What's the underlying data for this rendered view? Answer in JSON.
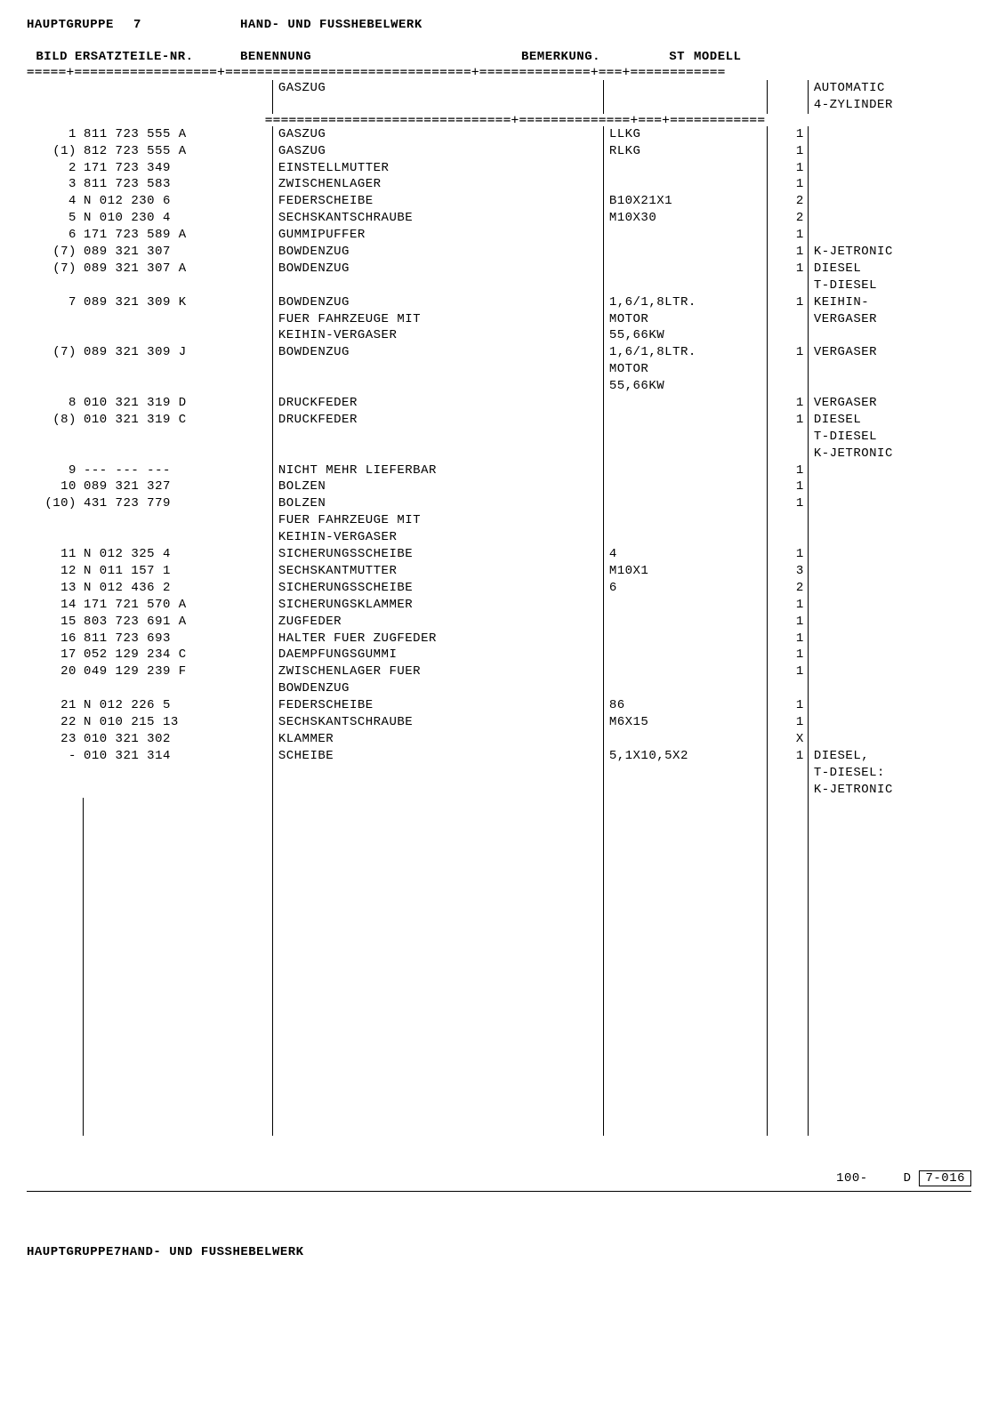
{
  "header": {
    "group_label": "HAUPTGRUPPE",
    "group_number": "7",
    "title": "HAND- UND FUSSHEBELWERK"
  },
  "columns": {
    "bild": "BILD",
    "part": "ERSATZTEILE-NR.",
    "name": "BENENNUNG",
    "remark": "BEMERKUNG.",
    "st": "ST",
    "model": "MODELL"
  },
  "section": {
    "title": "GASZUG",
    "model": "AUTOMATIC\n4-ZYLINDER"
  },
  "rows": [
    {
      "bild": "1",
      "part": "811 723 555 A",
      "name": "GASZUG",
      "remark": "LLKG",
      "st": "1",
      "model": ""
    },
    {
      "bild": "(1)",
      "part": "812 723 555 A",
      "name": "GASZUG",
      "remark": "RLKG",
      "st": "1",
      "model": ""
    },
    {
      "bild": "2",
      "part": "171 723 349",
      "name": "EINSTELLMUTTER",
      "remark": "",
      "st": "1",
      "model": ""
    },
    {
      "bild": "3",
      "part": "811 723 583",
      "name": "ZWISCHENLAGER",
      "remark": "",
      "st": "1",
      "model": ""
    },
    {
      "bild": "4",
      "part": "N   012 230 6",
      "name": "FEDERSCHEIBE",
      "remark": "B10X21X1",
      "st": "2",
      "model": ""
    },
    {
      "bild": "5",
      "part": "N   010 230 4",
      "name": "SECHSKANTSCHRAUBE",
      "remark": "M10X30",
      "st": "2",
      "model": ""
    },
    {
      "bild": "6",
      "part": "171 723 589 A",
      "name": "GUMMIPUFFER",
      "remark": "",
      "st": "1",
      "model": ""
    },
    {
      "bild": "(7)",
      "part": "089 321 307",
      "name": "BOWDENZUG",
      "remark": "",
      "st": "1",
      "model": "K-JETRONIC"
    },
    {
      "bild": "(7)",
      "part": "089 321 307 A",
      "name": "BOWDENZUG",
      "remark": "",
      "st": "1",
      "model": "DIESEL\nT-DIESEL"
    },
    {
      "bild": "7",
      "part": "089 321 309 K",
      "name": "BOWDENZUG\nFUER FAHRZEUGE MIT\nKEIHIN-VERGASER",
      "remark": "1,6/1,8LTR.\nMOTOR\n55,66KW",
      "st": "1",
      "model": "KEIHIN-\nVERGASER"
    },
    {
      "bild": "(7)",
      "part": "089 321 309 J",
      "name": "BOWDENZUG",
      "remark": "1,6/1,8LTR.\nMOTOR\n55,66KW",
      "st": "1",
      "model": "VERGASER"
    },
    {
      "bild": "8",
      "part": "010 321 319 D",
      "name": "DRUCKFEDER",
      "remark": "",
      "st": "1",
      "model": "VERGASER"
    },
    {
      "bild": "(8)",
      "part": "010 321 319 C",
      "name": "DRUCKFEDER",
      "remark": "",
      "st": "1",
      "model": "DIESEL\nT-DIESEL\nK-JETRONIC"
    },
    {
      "bild": "9",
      "part": "--- --- ---",
      "name": "NICHT MEHR LIEFERBAR",
      "remark": "",
      "st": "1",
      "model": ""
    },
    {
      "bild": "10",
      "part": "089 321 327",
      "name": "BOLZEN",
      "remark": "",
      "st": "1",
      "model": ""
    },
    {
      "bild": "(10)",
      "part": "431 723 779",
      "name": "BOLZEN\nFUER FAHRZEUGE MIT\nKEIHIN-VERGASER",
      "remark": "",
      "st": "1",
      "model": ""
    },
    {
      "bild": "11",
      "part": "N   012 325 4",
      "name": "SICHERUNGSSCHEIBE",
      "remark": "4",
      "st": "1",
      "model": ""
    },
    {
      "bild": "12",
      "part": "N   011 157 1",
      "name": "SECHSKANTMUTTER",
      "remark": "M10X1",
      "st": "3",
      "model": ""
    },
    {
      "bild": "13",
      "part": "N   012 436 2",
      "name": "SICHERUNGSSCHEIBE",
      "remark": "6",
      "st": "2",
      "model": ""
    },
    {
      "bild": "14",
      "part": "171 721 570 A",
      "name": "SICHERUNGSKLAMMER",
      "remark": "",
      "st": "1",
      "model": ""
    },
    {
      "bild": "15",
      "part": "803 723 691 A",
      "name": "ZUGFEDER",
      "remark": "",
      "st": "1",
      "model": ""
    },
    {
      "bild": "16",
      "part": "811 723 693",
      "name": "HALTER FUER ZUGFEDER",
      "remark": "",
      "st": "1",
      "model": ""
    },
    {
      "bild": "17",
      "part": "052 129 234 C",
      "name": "DAEMPFUNGSGUMMI",
      "remark": "",
      "st": "1",
      "model": ""
    },
    {
      "bild": "20",
      "part": "049 129 239 F",
      "name": "ZWISCHENLAGER FUER\nBOWDENZUG",
      "remark": "",
      "st": "1",
      "model": ""
    },
    {
      "bild": "21",
      "part": "N   012 226 5",
      "name": "FEDERSCHEIBE",
      "remark": "86",
      "st": "1",
      "model": ""
    },
    {
      "bild": "22",
      "part": "N   010 215 13",
      "name": "SECHSKANTSCHRAUBE",
      "remark": "M6X15",
      "st": "1",
      "model": ""
    },
    {
      "bild": "23",
      "part": "010 321 302",
      "name": "KLAMMER",
      "remark": "",
      "st": "X",
      "model": ""
    },
    {
      "bild": "-",
      "part": "010 321 314",
      "name": "SCHEIBE",
      "remark": "5,1X10,5X2",
      "st": "1",
      "model": "DIESEL,\nT-DIESEL:\nK-JETRONIC"
    }
  ],
  "footer": {
    "page": "100-",
    "code_prefix": "D",
    "code": "7-016"
  }
}
